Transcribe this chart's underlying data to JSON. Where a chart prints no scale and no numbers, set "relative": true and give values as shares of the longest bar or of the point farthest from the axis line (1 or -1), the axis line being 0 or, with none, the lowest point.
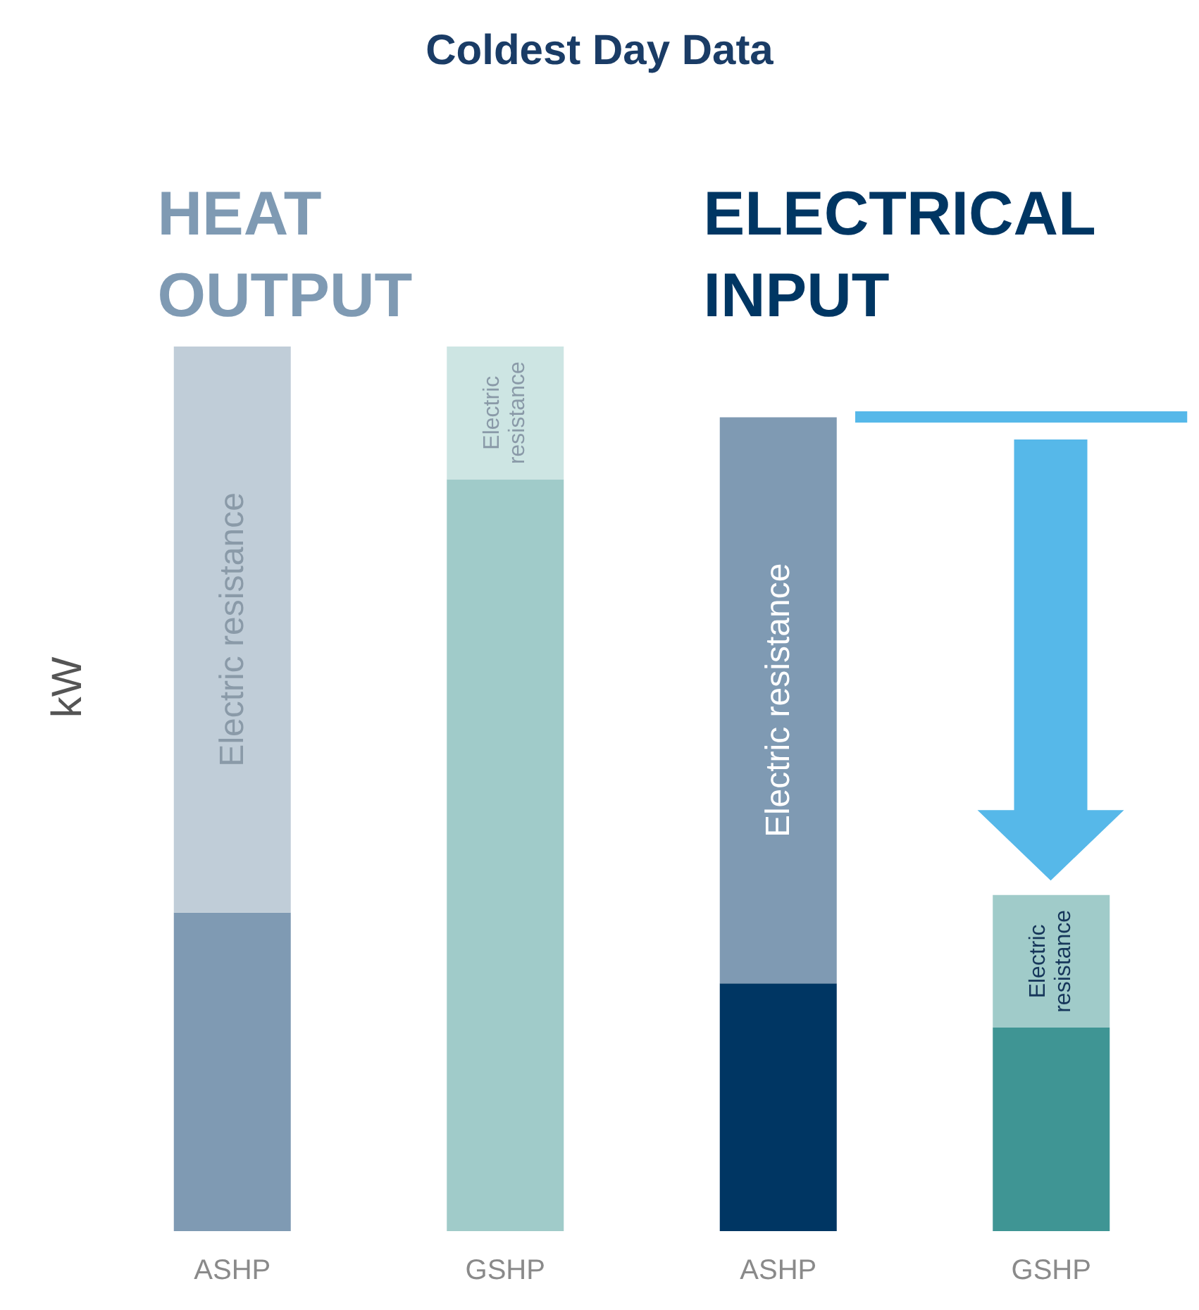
{
  "chart_data": {
    "type": "bar",
    "title": "Coldest Day Data",
    "ylabel": "kW",
    "relative": true,
    "stacked": true,
    "grid": false,
    "legend": false,
    "categories": [
      "ASHP",
      "GSHP",
      "ASHP",
      "GSHP"
    ],
    "annotations": [
      "HEAT OUTPUT",
      "ELECTRICAL INPUT"
    ],
    "series": [
      {
        "colors": [
          "#7f9ab3",
          "#a0cbc9",
          "#003663",
          "#3f9594"
        ],
        "values": [
          0.36,
          0.85,
          0.28,
          0.23
        ]
      },
      {
        "name": "Electric resistance",
        "colors": [
          "#c0cdd8",
          "#cde5e3",
          "#7f9ab3",
          "#a0cbc9"
        ],
        "values": [
          0.64,
          0.15,
          0.64,
          0.15
        ]
      }
    ]
  }
}
